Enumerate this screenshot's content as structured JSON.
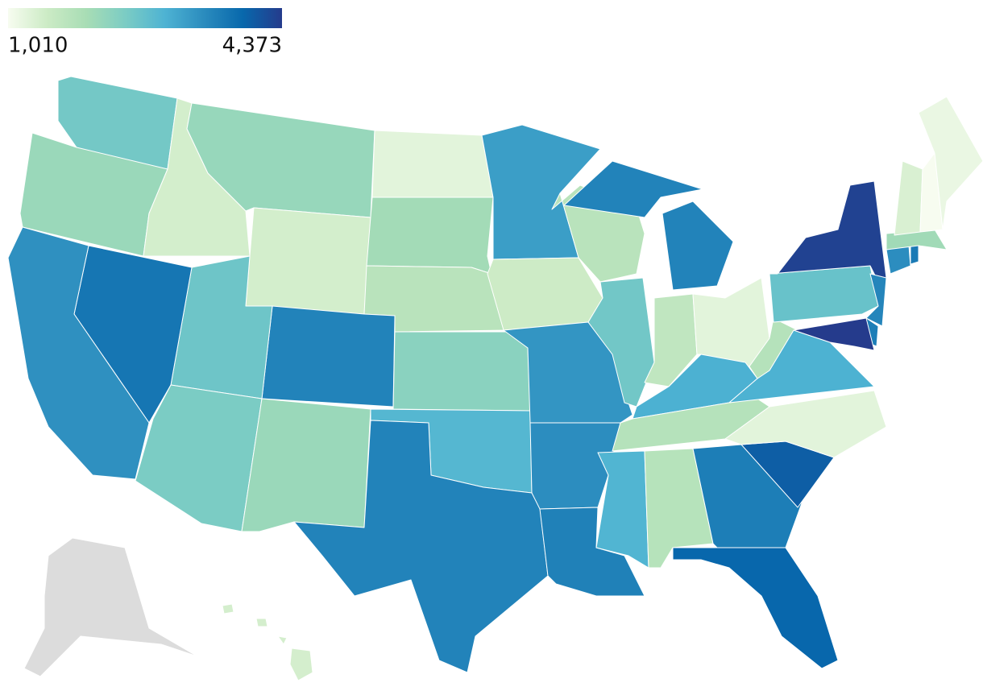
{
  "chart_data": {
    "type": "choropleth",
    "clim": [
      1010,
      4373
    ],
    "cticks": [
      {
        "value": 1010,
        "label": "1,010"
      },
      {
        "value": 4373,
        "label": "4,373"
      }
    ],
    "colors": [
      "#f7fcf0",
      "#ccebc5",
      "#a8ddb5",
      "#7bccc4",
      "#4eb3d3",
      "#2b8cbe",
      "#0868ac",
      "#253b8c"
    ],
    "missing_color": "#dcdcdc",
    "values": [
      2523,
      2120,
      1414,
      2150,
      1414,
      1250,
      2020,
      1750,
      3532,
      2590,
      3700,
      3364,
      2456,
      2120,
      2288,
      2860,
      3532,
      3196,
      1480,
      3300,
      3400,
      3560,
      1750,
      2550,
      3532,
      1650,
      1250,
      2960,
      1800,
      2900,
      1780,
      3600,
      3900,
      4000,
      1250,
      2950,
      1800,
      2650,
      4300,
      3500,
      3600,
      4373,
      3400,
      3650,
      2050,
      1350,
      1010,
      1150,
      1400,
      null
    ]
  }
}
